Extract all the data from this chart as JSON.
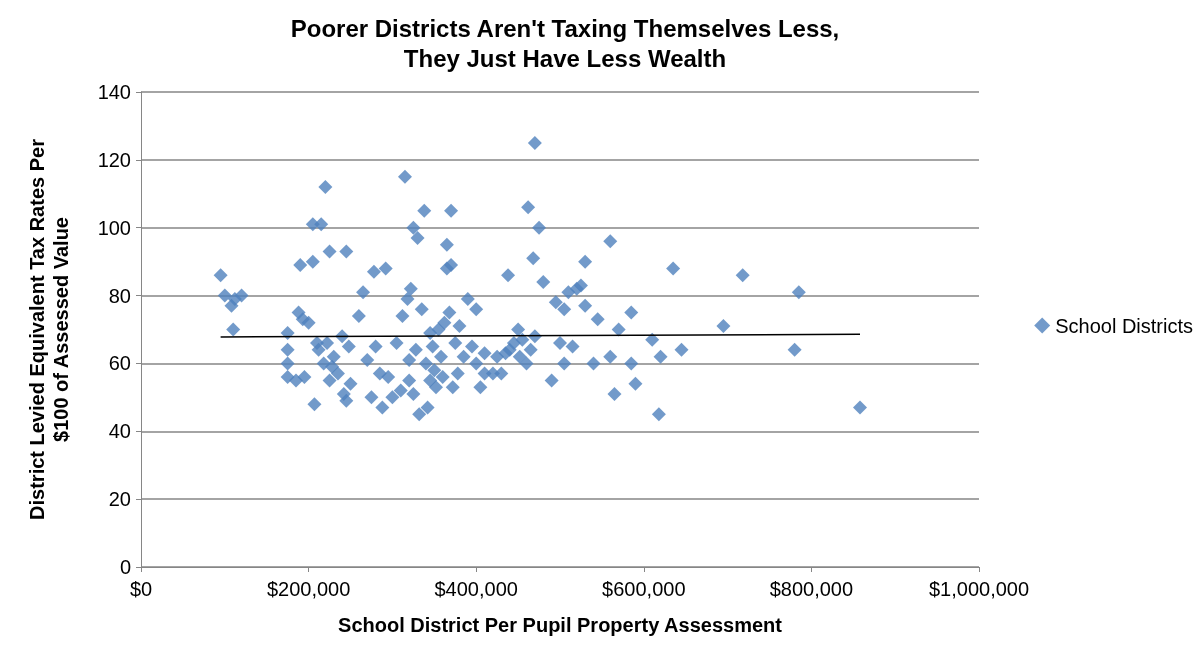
{
  "chart_data": {
    "type": "scatter",
    "title": "Poorer Districts Aren't Taxing Themselves Less,\nThey Just Have Less Wealth",
    "xlabel": "School District Per Pupil Property Assessment",
    "ylabel": "District Levied Equivalent Tax Rates Per\n$100 of Assessed Value",
    "xlim": [
      0,
      1000000
    ],
    "xticks": [
      {
        "value": 0,
        "label": "$0"
      },
      {
        "value": 200000,
        "label": "$200,000"
      },
      {
        "value": 400000,
        "label": "$400,000"
      },
      {
        "value": 600000,
        "label": "$600,000"
      },
      {
        "value": 800000,
        "label": "$800,000"
      },
      {
        "value": 1000000,
        "label": "$1,000,000"
      }
    ],
    "ylim": [
      0,
      140
    ],
    "yticks": [
      0,
      20,
      40,
      60,
      80,
      100,
      120,
      140
    ],
    "grid": "y",
    "legend": "right",
    "marker": "diamond",
    "series": [
      {
        "name": "School Districts",
        "color": "#4f81bd",
        "x": [
          95000,
          100000,
          108000,
          110000,
          112000,
          120000,
          175000,
          175000,
          175000,
          175000,
          185000,
          188000,
          190000,
          193000,
          195000,
          200000,
          205000,
          205000,
          207000,
          210000,
          212000,
          215000,
          220000,
          218000,
          222000,
          225000,
          225000,
          228000,
          230000,
          235000,
          240000,
          242000,
          245000,
          245000,
          248000,
          250000,
          260000,
          265000,
          270000,
          275000,
          278000,
          280000,
          285000,
          288000,
          292000,
          295000,
          300000,
          305000,
          310000,
          312000,
          315000,
          318000,
          320000,
          320000,
          322000,
          325000,
          325000,
          328000,
          330000,
          332000,
          335000,
          338000,
          340000,
          342000,
          345000,
          345000,
          348000,
          350000,
          352000,
          355000,
          358000,
          360000,
          362000,
          365000,
          365000,
          368000,
          370000,
          370000,
          372000,
          375000,
          378000,
          380000,
          385000,
          390000,
          395000,
          400000,
          400000,
          405000,
          410000,
          410000,
          420000,
          425000,
          430000,
          435000,
          438000,
          440000,
          445000,
          450000,
          452000,
          455000,
          460000,
          462000,
          465000,
          468000,
          470000,
          470000,
          475000,
          480000,
          490000,
          495000,
          500000,
          505000,
          505000,
          510000,
          515000,
          520000,
          525000,
          530000,
          530000,
          540000,
          545000,
          560000,
          560000,
          565000,
          570000,
          585000,
          585000,
          590000,
          610000,
          618000,
          620000,
          635000,
          645000,
          695000,
          718000,
          780000,
          785000,
          858000
        ],
        "values": [
          86,
          80,
          77,
          70,
          79,
          80,
          69,
          64,
          60,
          56,
          55,
          75,
          89,
          73,
          56,
          72,
          90,
          101,
          48,
          66,
          64,
          101,
          112,
          60,
          66,
          93,
          55,
          59,
          62,
          57,
          68,
          51,
          93,
          49,
          65,
          54,
          74,
          81,
          61,
          50,
          87,
          65,
          57,
          47,
          88,
          56,
          50,
          66,
          52,
          74,
          115,
          79,
          61,
          55,
          82,
          100,
          51,
          64,
          97,
          45,
          76,
          105,
          60,
          47,
          69,
          55,
          65,
          58,
          53,
          70,
          62,
          56,
          72,
          88,
          95,
          75,
          89,
          105,
          53,
          66,
          57,
          71,
          62,
          79,
          65,
          76,
          60,
          53,
          57,
          63,
          57,
          62,
          57,
          63,
          86,
          64,
          66,
          70,
          62,
          67,
          60,
          106,
          64,
          91,
          68,
          125,
          100,
          84,
          55,
          78,
          66,
          76,
          60,
          81,
          65,
          82,
          83,
          90,
          77,
          60,
          73,
          96,
          62,
          51,
          70,
          75,
          60,
          54,
          67,
          45,
          62,
          88,
          64,
          71,
          86,
          64,
          81,
          47
        ]
      },
      {
        "type": "line",
        "color": "#000000",
        "marker": "none",
        "x": [
          95000,
          858000
        ],
        "values": [
          67.8,
          68.6
        ]
      }
    ]
  }
}
